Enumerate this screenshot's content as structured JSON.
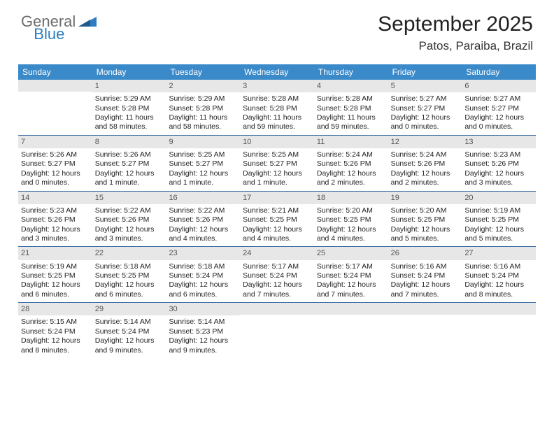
{
  "logo": {
    "gray": "General",
    "blue": "Blue"
  },
  "title": "September 2025",
  "location": "Patos, Paraiba, Brazil",
  "colors": {
    "header_bg": "#3a89c9",
    "header_text": "#ffffff",
    "daynum_bg": "#e7e7e7",
    "daynum_text": "#555555",
    "body_text": "#222222",
    "row_border": "#3a6ea5",
    "logo_gray": "#6d6d6d",
    "logo_blue": "#2d7dc0",
    "page_bg": "#ffffff"
  },
  "typography": {
    "title_fontsize": 30,
    "location_fontsize": 17,
    "dayheader_fontsize": 12,
    "cell_fontsize": 10.5,
    "daynum_fontsize": 11,
    "logo_fontsize": 22
  },
  "day_headers": [
    "Sunday",
    "Monday",
    "Tuesday",
    "Wednesday",
    "Thursday",
    "Friday",
    "Saturday"
  ],
  "weeks": [
    [
      {
        "n": "",
        "sunrise": "",
        "sunset": "",
        "daylight1": "",
        "daylight2": ""
      },
      {
        "n": "1",
        "sunrise": "Sunrise: 5:29 AM",
        "sunset": "Sunset: 5:28 PM",
        "daylight1": "Daylight: 11 hours",
        "daylight2": "and 58 minutes."
      },
      {
        "n": "2",
        "sunrise": "Sunrise: 5:29 AM",
        "sunset": "Sunset: 5:28 PM",
        "daylight1": "Daylight: 11 hours",
        "daylight2": "and 58 minutes."
      },
      {
        "n": "3",
        "sunrise": "Sunrise: 5:28 AM",
        "sunset": "Sunset: 5:28 PM",
        "daylight1": "Daylight: 11 hours",
        "daylight2": "and 59 minutes."
      },
      {
        "n": "4",
        "sunrise": "Sunrise: 5:28 AM",
        "sunset": "Sunset: 5:28 PM",
        "daylight1": "Daylight: 11 hours",
        "daylight2": "and 59 minutes."
      },
      {
        "n": "5",
        "sunrise": "Sunrise: 5:27 AM",
        "sunset": "Sunset: 5:27 PM",
        "daylight1": "Daylight: 12 hours",
        "daylight2": "and 0 minutes."
      },
      {
        "n": "6",
        "sunrise": "Sunrise: 5:27 AM",
        "sunset": "Sunset: 5:27 PM",
        "daylight1": "Daylight: 12 hours",
        "daylight2": "and 0 minutes."
      }
    ],
    [
      {
        "n": "7",
        "sunrise": "Sunrise: 5:26 AM",
        "sunset": "Sunset: 5:27 PM",
        "daylight1": "Daylight: 12 hours",
        "daylight2": "and 0 minutes."
      },
      {
        "n": "8",
        "sunrise": "Sunrise: 5:26 AM",
        "sunset": "Sunset: 5:27 PM",
        "daylight1": "Daylight: 12 hours",
        "daylight2": "and 1 minute."
      },
      {
        "n": "9",
        "sunrise": "Sunrise: 5:25 AM",
        "sunset": "Sunset: 5:27 PM",
        "daylight1": "Daylight: 12 hours",
        "daylight2": "and 1 minute."
      },
      {
        "n": "10",
        "sunrise": "Sunrise: 5:25 AM",
        "sunset": "Sunset: 5:27 PM",
        "daylight1": "Daylight: 12 hours",
        "daylight2": "and 1 minute."
      },
      {
        "n": "11",
        "sunrise": "Sunrise: 5:24 AM",
        "sunset": "Sunset: 5:26 PM",
        "daylight1": "Daylight: 12 hours",
        "daylight2": "and 2 minutes."
      },
      {
        "n": "12",
        "sunrise": "Sunrise: 5:24 AM",
        "sunset": "Sunset: 5:26 PM",
        "daylight1": "Daylight: 12 hours",
        "daylight2": "and 2 minutes."
      },
      {
        "n": "13",
        "sunrise": "Sunrise: 5:23 AM",
        "sunset": "Sunset: 5:26 PM",
        "daylight1": "Daylight: 12 hours",
        "daylight2": "and 3 minutes."
      }
    ],
    [
      {
        "n": "14",
        "sunrise": "Sunrise: 5:23 AM",
        "sunset": "Sunset: 5:26 PM",
        "daylight1": "Daylight: 12 hours",
        "daylight2": "and 3 minutes."
      },
      {
        "n": "15",
        "sunrise": "Sunrise: 5:22 AM",
        "sunset": "Sunset: 5:26 PM",
        "daylight1": "Daylight: 12 hours",
        "daylight2": "and 3 minutes."
      },
      {
        "n": "16",
        "sunrise": "Sunrise: 5:22 AM",
        "sunset": "Sunset: 5:26 PM",
        "daylight1": "Daylight: 12 hours",
        "daylight2": "and 4 minutes."
      },
      {
        "n": "17",
        "sunrise": "Sunrise: 5:21 AM",
        "sunset": "Sunset: 5:25 PM",
        "daylight1": "Daylight: 12 hours",
        "daylight2": "and 4 minutes."
      },
      {
        "n": "18",
        "sunrise": "Sunrise: 5:20 AM",
        "sunset": "Sunset: 5:25 PM",
        "daylight1": "Daylight: 12 hours",
        "daylight2": "and 4 minutes."
      },
      {
        "n": "19",
        "sunrise": "Sunrise: 5:20 AM",
        "sunset": "Sunset: 5:25 PM",
        "daylight1": "Daylight: 12 hours",
        "daylight2": "and 5 minutes."
      },
      {
        "n": "20",
        "sunrise": "Sunrise: 5:19 AM",
        "sunset": "Sunset: 5:25 PM",
        "daylight1": "Daylight: 12 hours",
        "daylight2": "and 5 minutes."
      }
    ],
    [
      {
        "n": "21",
        "sunrise": "Sunrise: 5:19 AM",
        "sunset": "Sunset: 5:25 PM",
        "daylight1": "Daylight: 12 hours",
        "daylight2": "and 6 minutes."
      },
      {
        "n": "22",
        "sunrise": "Sunrise: 5:18 AM",
        "sunset": "Sunset: 5:25 PM",
        "daylight1": "Daylight: 12 hours",
        "daylight2": "and 6 minutes."
      },
      {
        "n": "23",
        "sunrise": "Sunrise: 5:18 AM",
        "sunset": "Sunset: 5:24 PM",
        "daylight1": "Daylight: 12 hours",
        "daylight2": "and 6 minutes."
      },
      {
        "n": "24",
        "sunrise": "Sunrise: 5:17 AM",
        "sunset": "Sunset: 5:24 PM",
        "daylight1": "Daylight: 12 hours",
        "daylight2": "and 7 minutes."
      },
      {
        "n": "25",
        "sunrise": "Sunrise: 5:17 AM",
        "sunset": "Sunset: 5:24 PM",
        "daylight1": "Daylight: 12 hours",
        "daylight2": "and 7 minutes."
      },
      {
        "n": "26",
        "sunrise": "Sunrise: 5:16 AM",
        "sunset": "Sunset: 5:24 PM",
        "daylight1": "Daylight: 12 hours",
        "daylight2": "and 7 minutes."
      },
      {
        "n": "27",
        "sunrise": "Sunrise: 5:16 AM",
        "sunset": "Sunset: 5:24 PM",
        "daylight1": "Daylight: 12 hours",
        "daylight2": "and 8 minutes."
      }
    ],
    [
      {
        "n": "28",
        "sunrise": "Sunrise: 5:15 AM",
        "sunset": "Sunset: 5:24 PM",
        "daylight1": "Daylight: 12 hours",
        "daylight2": "and 8 minutes."
      },
      {
        "n": "29",
        "sunrise": "Sunrise: 5:14 AM",
        "sunset": "Sunset: 5:24 PM",
        "daylight1": "Daylight: 12 hours",
        "daylight2": "and 9 minutes."
      },
      {
        "n": "30",
        "sunrise": "Sunrise: 5:14 AM",
        "sunset": "Sunset: 5:23 PM",
        "daylight1": "Daylight: 12 hours",
        "daylight2": "and 9 minutes."
      },
      {
        "n": "",
        "sunrise": "",
        "sunset": "",
        "daylight1": "",
        "daylight2": ""
      },
      {
        "n": "",
        "sunrise": "",
        "sunset": "",
        "daylight1": "",
        "daylight2": ""
      },
      {
        "n": "",
        "sunrise": "",
        "sunset": "",
        "daylight1": "",
        "daylight2": ""
      },
      {
        "n": "",
        "sunrise": "",
        "sunset": "",
        "daylight1": "",
        "daylight2": ""
      }
    ]
  ]
}
